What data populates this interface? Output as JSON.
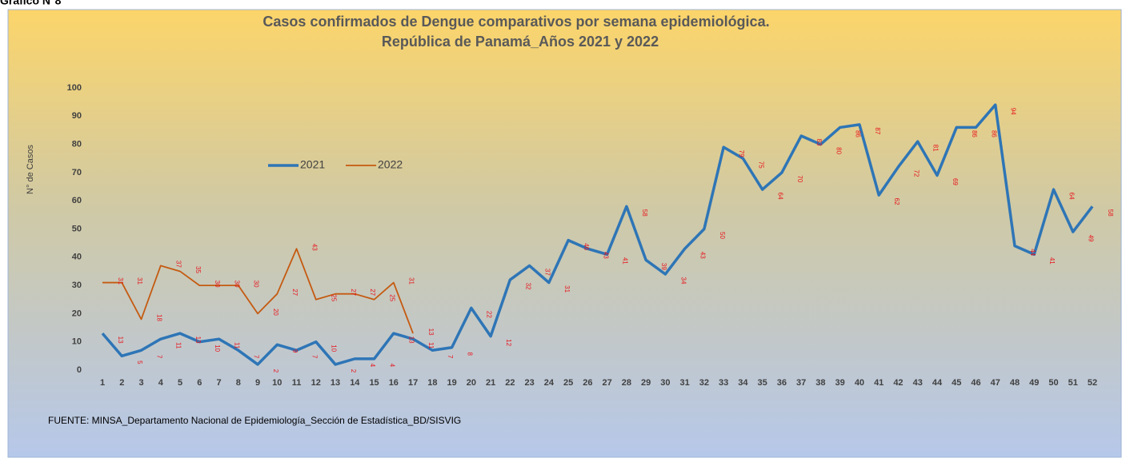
{
  "chart_data": {
    "type": "line",
    "caption": "Gráfico N°8",
    "title": "Casos confirmados de Dengue comparativos por semana epidemiológica.",
    "subtitle": "República de Panamá_Años 2021 y 2022",
    "y_label": "N° de Casos",
    "source": "FUENTE: MINSA_Departamento Nacional de Epidemiología_Sección de Estadística_BD/SISVIG",
    "categories": [
      "1",
      "2",
      "3",
      "4",
      "5",
      "6",
      "7",
      "8",
      "9",
      "10",
      "11",
      "12",
      "13",
      "14",
      "15",
      "16",
      "17",
      "18",
      "19",
      "20",
      "21",
      "22",
      "23",
      "24",
      "25",
      "26",
      "27",
      "28",
      "29",
      "30",
      "31",
      "32",
      "33",
      "34",
      "35",
      "36",
      "37",
      "38",
      "39",
      "40",
      "41",
      "42",
      "43",
      "44",
      "45",
      "46",
      "47",
      "48",
      "49",
      "50",
      "51",
      "52"
    ],
    "series": [
      {
        "name": "2021",
        "color": "#2e75b6",
        "width": 3.5,
        "values": [
          13,
          5,
          7,
          11,
          13,
          10,
          11,
          7,
          2,
          9,
          7,
          10,
          2,
          4,
          4,
          13,
          11,
          7,
          8,
          22,
          12,
          32,
          37,
          31,
          46,
          43,
          41,
          58,
          39,
          34,
          43,
          50,
          79,
          75,
          64,
          70,
          83,
          80,
          86,
          87,
          62,
          72,
          81,
          69,
          86,
          86,
          94,
          44,
          41,
          64,
          49,
          58
        ]
      },
      {
        "name": "2022",
        "color": "#c55a11",
        "width": 1.8,
        "values": [
          31,
          31,
          18,
          37,
          35,
          30,
          30,
          30,
          20,
          27,
          43,
          25,
          27,
          27,
          25,
          31,
          13,
          null,
          null,
          null,
          null,
          null,
          null,
          null,
          null,
          null,
          null,
          null,
          null,
          null,
          null,
          null,
          null,
          null,
          null,
          null,
          null,
          null,
          null,
          null,
          null,
          null,
          null,
          null,
          null,
          null,
          null,
          null,
          null,
          null,
          null,
          null
        ]
      }
    ],
    "ylim": [
      0,
      100
    ],
    "yticks": [
      0,
      10,
      20,
      30,
      40,
      50,
      60,
      70,
      80,
      90,
      100
    ],
    "grid": false,
    "data_labels": true
  }
}
